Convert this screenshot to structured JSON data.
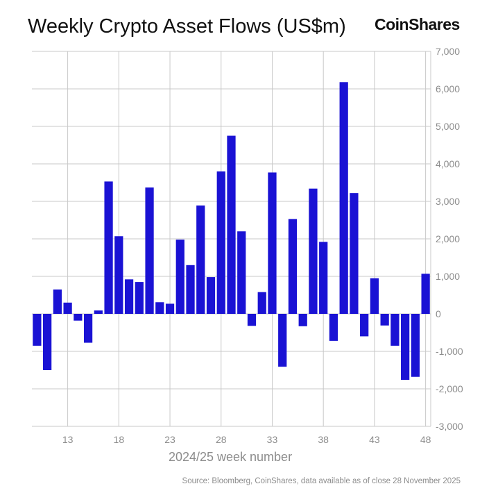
{
  "header": {
    "title": "Weekly Crypto Asset Flows (US$m)",
    "brand": "CoinShares"
  },
  "footer": {
    "source": "Source: Bloomberg, CoinShares, data available as of close 28 November 2025"
  },
  "colors": {
    "bar": "#1a12d4",
    "grid": "#c8c8c8",
    "axis_text": "#8c8c8c"
  },
  "chart_data": {
    "type": "bar",
    "title": "Weekly Crypto Asset Flows (US$m)",
    "xlabel": "2024/25 week number",
    "ylabel": "",
    "y_axis_position": "right",
    "ylim": [
      -3000,
      7000
    ],
    "yticks": [
      7000,
      6000,
      5000,
      4000,
      3000,
      2000,
      1000,
      0,
      -1000,
      -2000,
      -3000
    ],
    "ytick_labels": [
      "7,000",
      "6,000",
      "5,000",
      "4,000",
      "3,000",
      "2,000",
      "1,000",
      "0",
      "-1,000",
      "-2,000",
      "-3,000"
    ],
    "xtick_labels": [
      "13",
      "18",
      "23",
      "28",
      "33",
      "38",
      "43",
      "48"
    ],
    "grid": true,
    "categories": [
      "10",
      "11",
      "12",
      "13",
      "14",
      "15",
      "16",
      "17",
      "18",
      "19",
      "20",
      "21",
      "22",
      "23",
      "24",
      "25",
      "26",
      "27",
      "28",
      "29",
      "30",
      "31",
      "32",
      "33",
      "34",
      "35",
      "36",
      "37",
      "38",
      "39",
      "40",
      "41",
      "42",
      "43",
      "44",
      "45",
      "46",
      "47",
      "48"
    ],
    "values": [
      -850,
      -1500,
      650,
      300,
      -180,
      -770,
      90,
      3530,
      2070,
      920,
      850,
      3370,
      310,
      270,
      1980,
      1300,
      2890,
      980,
      3800,
      4750,
      2200,
      -320,
      580,
      3770,
      -1410,
      2530,
      -330,
      3340,
      1920,
      -720,
      6180,
      3220,
      -600,
      950,
      -310,
      -850,
      -1760,
      -1680,
      1070
    ]
  }
}
